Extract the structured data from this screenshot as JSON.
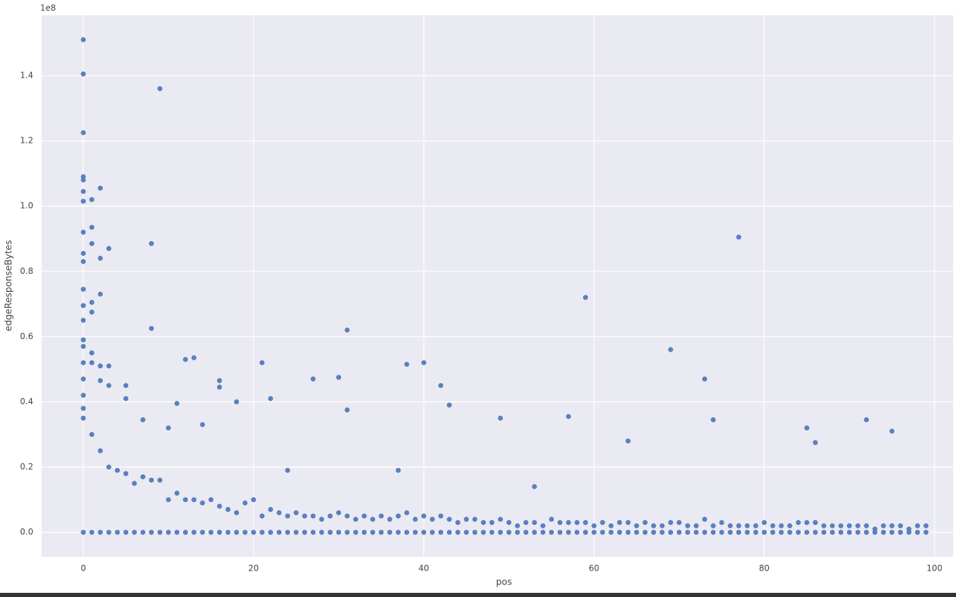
{
  "chart_data": {
    "type": "scatter",
    "x_label": "pos",
    "y_label": "edgeResponseBytes",
    "y_offset_label": "1e8",
    "color": "#5a80c0",
    "grid": true,
    "xlim": [
      -4.9,
      102.2
    ],
    "ylim": [
      -0.075,
      1.585
    ],
    "xticks": [
      0,
      20,
      40,
      60,
      80,
      100
    ],
    "yticks": [
      {
        "value": 0,
        "label": "0.0"
      },
      0.2,
      0.4,
      0.6,
      0.8,
      {
        "value": 1,
        "label": "1.0"
      },
      1.2,
      1.4
    ],
    "x": [
      0,
      1,
      2,
      3,
      4,
      5,
      6,
      7,
      8,
      9,
      10,
      11,
      12,
      13,
      14,
      15,
      16,
      17,
      18,
      19,
      20,
      21,
      22,
      23,
      24,
      25,
      26,
      27,
      28,
      29,
      30,
      31,
      32,
      33,
      34,
      35,
      36,
      37,
      38,
      39,
      40,
      41,
      42,
      43,
      44,
      45,
      46,
      47,
      48,
      49,
      50,
      51,
      52,
      53,
      54,
      55,
      56,
      57,
      58,
      59,
      60,
      61,
      62,
      63,
      64,
      65,
      66,
      67,
      68,
      69,
      70,
      71,
      72,
      73,
      74,
      75,
      76,
      77,
      78,
      79,
      80,
      81,
      82,
      83,
      84,
      85,
      86,
      87,
      88,
      89,
      90,
      91,
      92,
      93,
      94,
      95,
      96,
      97,
      98,
      99,
      0,
      1,
      2,
      3,
      4,
      5,
      6,
      7,
      8,
      9,
      10,
      11,
      12,
      13,
      14,
      15,
      16,
      17,
      18,
      19,
      20,
      21,
      22,
      23,
      24,
      25,
      26,
      27,
      28,
      29,
      30,
      31,
      32,
      33,
      34,
      35,
      36,
      37,
      38,
      39,
      40,
      41,
      42,
      43,
      44,
      45,
      46,
      47,
      48,
      49,
      50,
      51,
      52,
      53,
      54,
      55,
      56,
      57,
      58,
      59,
      60,
      61,
      62,
      63,
      64,
      65,
      66,
      67,
      68,
      69,
      70,
      71,
      72,
      73,
      74,
      75,
      76,
      77,
      78,
      79,
      80,
      81,
      82,
      83,
      84,
      85,
      86,
      87,
      88,
      89,
      90,
      91,
      92,
      93,
      94,
      95,
      96,
      97,
      98,
      99,
      0,
      0,
      0,
      0,
      0,
      0,
      0,
      0,
      0,
      0,
      0,
      0,
      0,
      0,
      0,
      0,
      0,
      0,
      0,
      1,
      1,
      1,
      1,
      1,
      1,
      1,
      2,
      2,
      2,
      2,
      2,
      3,
      3,
      3,
      5,
      5,
      8,
      8,
      9,
      12,
      13,
      16,
      16,
      18,
      21,
      22,
      27,
      30,
      31,
      31,
      38,
      40,
      42,
      43,
      49,
      57,
      59,
      69,
      73,
      74,
      77,
      92,
      95,
      11,
      7,
      24,
      64,
      85,
      86,
      10,
      14,
      37,
      53
    ],
    "values": [
      0,
      0,
      0,
      0,
      0,
      0,
      0,
      0,
      0,
      0,
      0,
      0,
      0,
      0,
      0,
      0,
      0,
      0,
      0,
      0,
      0,
      0,
      0,
      0,
      0,
      0,
      0,
      0,
      0,
      0,
      0,
      0,
      0,
      0,
      0,
      0,
      0,
      0,
      0,
      0,
      0,
      0,
      0,
      0,
      0,
      0,
      0,
      0,
      0,
      0,
      0,
      0,
      0,
      0,
      0,
      0,
      0,
      0,
      0,
      0,
      0,
      0,
      0,
      0,
      0,
      0,
      0,
      0,
      0,
      0,
      0,
      0,
      0,
      0,
      0,
      0,
      0,
      0,
      0,
      0,
      0,
      0,
      0,
      0,
      0,
      0,
      0,
      0,
      0,
      0,
      0,
      0,
      0,
      0,
      0,
      0,
      0,
      0,
      0,
      0,
      0.35,
      0.3,
      0.25,
      0.2,
      0.19,
      0.18,
      0.15,
      0.17,
      0.16,
      0.16,
      0.1,
      0.12,
      0.1,
      0.1,
      0.09,
      0.1,
      0.08,
      0.07,
      0.06,
      0.09,
      0.1,
      0.05,
      0.07,
      0.06,
      0.05,
      0.06,
      0.05,
      0.05,
      0.04,
      0.05,
      0.06,
      0.05,
      0.04,
      0.05,
      0.04,
      0.05,
      0.04,
      0.05,
      0.06,
      0.04,
      0.05,
      0.04,
      0.05,
      0.04,
      0.03,
      0.04,
      0.04,
      0.03,
      0.03,
      0.04,
      0.03,
      0.02,
      0.03,
      0.03,
      0.02,
      0.04,
      0.03,
      0.03,
      0.03,
      0.03,
      0.02,
      0.03,
      0.02,
      0.03,
      0.03,
      0.02,
      0.03,
      0.02,
      0.02,
      0.03,
      0.03,
      0.02,
      0.02,
      0.04,
      0.02,
      0.03,
      0.02,
      0.02,
      0.02,
      0.02,
      0.03,
      0.02,
      0.02,
      0.02,
      0.03,
      0.03,
      0.03,
      0.02,
      0.02,
      0.02,
      0.02,
      0.02,
      0.02,
      0.01,
      0.02,
      0.02,
      0.02,
      0.01,
      0.02,
      0.02,
      1.51,
      1.405,
      1.225,
      1.09,
      1.08,
      1.045,
      1.015,
      0.92,
      0.855,
      0.83,
      0.745,
      0.695,
      0.65,
      0.59,
      0.57,
      0.52,
      0.47,
      0.42,
      0.38,
      1.02,
      0.935,
      0.885,
      0.705,
      0.675,
      0.55,
      0.52,
      1.055,
      0.84,
      0.73,
      0.51,
      0.465,
      0.87,
      0.51,
      0.45,
      0.45,
      0.41,
      0.885,
      0.625,
      1.36,
      0.53,
      0.535,
      0.465,
      0.445,
      0.4,
      0.52,
      0.41,
      0.47,
      0.475,
      0.62,
      0.375,
      0.515,
      0.52,
      0.45,
      0.39,
      0.35,
      0.355,
      0.72,
      0.56,
      0.47,
      0.345,
      0.905,
      0.345,
      0.31,
      0.395,
      0.345,
      0.19,
      0.28,
      0.32,
      0.275,
      0.32,
      0.33,
      0.19,
      0.14
    ]
  }
}
